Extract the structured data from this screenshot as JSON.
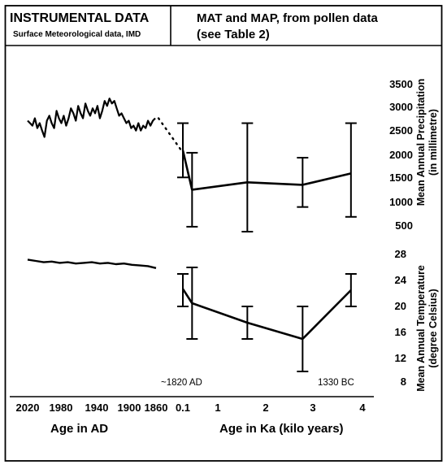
{
  "header": {
    "left_title": "INSTRUMENTAL DATA",
    "left_subtitle": "Surface Meteorological data, IMD",
    "right_line1": "MAT and MAP, from pollen data",
    "right_line2": "(see Table 2)"
  },
  "axes": {
    "x_ad_ticks": [
      "2020",
      "1980",
      "1940",
      "1900",
      "1860"
    ],
    "x_ka_ticks": [
      "0.1",
      "1",
      "2",
      "3",
      "4"
    ],
    "x_ad_label": "Age in AD",
    "x_ka_label": "Age in Ka (kilo years)",
    "precip_label_line1": "Mean Annual Precipitation",
    "precip_label_line2": "(in millimetre)",
    "temp_label_line1": "Mean Annual Temperature",
    "temp_label_line2": "(degree Celsius)",
    "precip_ticks": [
      "3500",
      "3000",
      "2500",
      "2000",
      "1500",
      "1000",
      "500"
    ],
    "temp_ticks": [
      "28",
      "24",
      "20",
      "16",
      "12",
      "8"
    ]
  },
  "annotations": {
    "left": "~1820 AD",
    "right": "1330 BC"
  },
  "colors": {
    "ink": "#000000",
    "background": "#ffffff"
  },
  "chart_data": [
    {
      "type": "line",
      "panel": "precipitation",
      "ylabel": "Mean Annual Precipitation (in millimetre)",
      "ylim": [
        500,
        3500
      ],
      "instrumental": {
        "x_ad": [
          2020,
          2017,
          2014,
          2011,
          2008,
          2005,
          2002,
          1999,
          1996,
          1993,
          1990,
          1987,
          1984,
          1981,
          1978,
          1975,
          1972,
          1969,
          1966,
          1963,
          1960,
          1957,
          1954,
          1951,
          1948,
          1945,
          1942,
          1939,
          1936,
          1933,
          1930,
          1927,
          1924,
          1921,
          1918,
          1915,
          1912,
          1909,
          1906,
          1903,
          1900,
          1897,
          1894,
          1891,
          1888,
          1885,
          1882,
          1879,
          1876,
          1873,
          1870,
          1867,
          1864,
          1861
        ],
        "values": [
          2750,
          2700,
          2650,
          2800,
          2600,
          2700,
          2550,
          2420,
          2750,
          2850,
          2700,
          2600,
          2950,
          2800,
          2700,
          2850,
          2650,
          2800,
          3000,
          2900,
          2750,
          3050,
          2900,
          2800,
          3100,
          2950,
          2850,
          3000,
          2900,
          3050,
          2800,
          2950,
          3150,
          3050,
          3200,
          3100,
          3150,
          3000,
          2850,
          2900,
          2800,
          2700,
          2750,
          2600,
          2650,
          2550,
          2700,
          2550,
          2650,
          2600,
          2750,
          2650,
          2750,
          2800
        ]
      },
      "pollen": {
        "x_ka": [
          0.1,
          0.3,
          1.5,
          2.7,
          3.75
        ],
        "values": [
          2150,
          1350,
          1500,
          1450,
          1680
        ],
        "error_low": [
          1600,
          600,
          500,
          1000,
          800
        ],
        "error_high": [
          2700,
          2100,
          2700,
          2000,
          2700
        ]
      }
    },
    {
      "type": "line",
      "panel": "temperature",
      "ylabel": "Mean Annual Temperature (degree Celsius)",
      "ylim": [
        8,
        28
      ],
      "instrumental": {
        "x_ad": [
          2020,
          2010,
          2000,
          1990,
          1980,
          1970,
          1960,
          1950,
          1940,
          1930,
          1920,
          1910,
          1900,
          1890,
          1880,
          1870,
          1860
        ],
        "values": [
          27.2,
          27.0,
          26.8,
          26.9,
          26.7,
          26.8,
          26.6,
          26.7,
          26.8,
          26.6,
          26.7,
          26.5,
          26.6,
          26.4,
          26.3,
          26.2,
          25.9
        ]
      },
      "pollen": {
        "x_ka": [
          0.1,
          0.3,
          1.5,
          2.7,
          3.75
        ],
        "values": [
          22.7,
          20.5,
          17.5,
          15.0,
          22.5
        ],
        "error_low": [
          20.0,
          15.0,
          15.0,
          10.0,
          20.0
        ],
        "error_high": [
          25.0,
          26.0,
          20.0,
          20.0,
          25.0
        ]
      }
    }
  ]
}
